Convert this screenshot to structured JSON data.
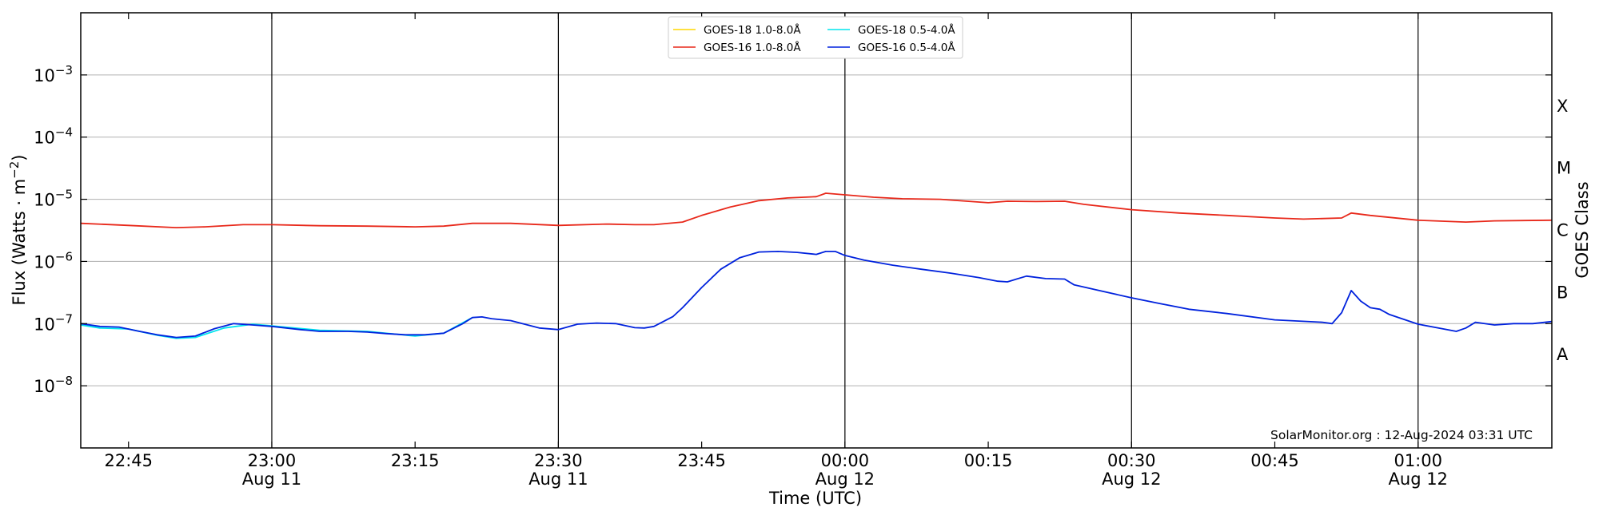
{
  "chart_data": {
    "type": "line",
    "title": "",
    "xlabel": "Time (UTC)",
    "ylabel": "Flux (Watts · m",
    "ylabel_superscript": "−2",
    "ylabel_close": ")",
    "right_label": "GOES Class",
    "y_scale": "log",
    "ylim": [
      1e-09,
      0.01
    ],
    "x_range_minutes": [
      "22:40",
      "01:14"
    ],
    "y_ticks": [
      {
        "value": 1e-08,
        "base": "10",
        "exp": "−8"
      },
      {
        "value": 1e-07,
        "base": "10",
        "exp": "−7"
      },
      {
        "value": 1e-06,
        "base": "10",
        "exp": "−6"
      },
      {
        "value": 1e-05,
        "base": "10",
        "exp": "−5"
      },
      {
        "value": 0.0001,
        "base": "10",
        "exp": "−4"
      },
      {
        "value": 0.001,
        "base": "10",
        "exp": "−3"
      }
    ],
    "x_ticks": [
      {
        "time": "22:45",
        "label": "22:45",
        "date": ""
      },
      {
        "time": "23:00",
        "label": "23:00",
        "date": "Aug 11"
      },
      {
        "time": "23:15",
        "label": "23:15",
        "date": ""
      },
      {
        "time": "23:30",
        "label": "23:30",
        "date": "Aug 11"
      },
      {
        "time": "23:45",
        "label": "23:45",
        "date": ""
      },
      {
        "time": "00:00",
        "label": "00:00",
        "date": "Aug 12"
      },
      {
        "time": "00:15",
        "label": "00:15",
        "date": ""
      },
      {
        "time": "00:30",
        "label": "00:30",
        "date": "Aug 12"
      },
      {
        "time": "00:45",
        "label": "00:45",
        "date": ""
      },
      {
        "time": "01:00",
        "label": "01:00",
        "date": "Aug 12"
      }
    ],
    "vertical_lines": [
      "23:00",
      "23:30",
      "00:00",
      "00:30",
      "01:00"
    ],
    "class_labels": [
      {
        "label": "X",
        "value": 0.000316
      },
      {
        "label": "M",
        "value": 3.16e-05
      },
      {
        "label": "C",
        "value": 3.16e-06
      },
      {
        "label": "B",
        "value": 3.16e-07
      },
      {
        "label": "A",
        "value": 3.16e-08
      }
    ],
    "grid": true,
    "legend_position": "top-center",
    "watermark": "SolarMonitor.org : 12-Aug-2024 03:31 UTC",
    "series": [
      {
        "name": "GOES-18 1.0-8.0Å",
        "color": "#ffd700",
        "x": [],
        "values": []
      },
      {
        "name": "GOES-16 1.0-8.0Å",
        "color": "#e8281a",
        "x": [
          "22:40",
          "22:45",
          "22:50",
          "22:53",
          "22:57",
          "23:00",
          "23:05",
          "23:10",
          "23:15",
          "23:18",
          "23:21",
          "23:25",
          "23:30",
          "23:35",
          "23:38",
          "23:40",
          "23:43",
          "23:45",
          "23:48",
          "23:51",
          "23:54",
          "23:57",
          "23:58",
          "24:00",
          "24:03",
          "24:06",
          "24:10",
          "24:15",
          "24:17",
          "24:20",
          "24:23",
          "24:25",
          "24:30",
          "24:35",
          "24:40",
          "24:45",
          "24:48",
          "24:52",
          "24:53",
          "24:55",
          "25:00",
          "25:05",
          "25:08",
          "25:14"
        ],
        "values": [
          4.1e-06,
          3.8e-06,
          3.5e-06,
          3.6e-06,
          3.9e-06,
          3.9e-06,
          3.75e-06,
          3.7e-06,
          3.6e-06,
          3.7e-06,
          4.1e-06,
          4.1e-06,
          3.8e-06,
          4e-06,
          3.9e-06,
          3.9e-06,
          4.3e-06,
          5.5e-06,
          7.5e-06,
          9.5e-06,
          1.05e-05,
          1.1e-05,
          1.25e-05,
          1.18e-05,
          1.08e-05,
          1.02e-05,
          1e-05,
          8.8e-06,
          9.3e-06,
          9.2e-06,
          9.3e-06,
          8.3e-06,
          6.8e-06,
          6e-06,
          5.5e-06,
          5e-06,
          4.8e-06,
          5e-06,
          6e-06,
          5.5e-06,
          4.6e-06,
          4.3e-06,
          4.5e-06,
          4.6e-06
        ]
      },
      {
        "name": "GOES-18 0.5-4.0Å",
        "color": "#00e5ee",
        "x": [
          "22:40",
          "22:42",
          "22:45",
          "22:48",
          "22:50",
          "22:52",
          "22:55",
          "22:58",
          "23:00",
          "23:05",
          "23:10",
          "23:15",
          "23:18",
          "23:21"
        ],
        "values": [
          9.5e-08,
          8.5e-08,
          8.2e-08,
          6.5e-08,
          5.8e-08,
          6e-08,
          8.5e-08,
          9.8e-08,
          9.2e-08,
          7.8e-08,
          7.5e-08,
          6.3e-08,
          7e-08,
          1.25e-07
        ]
      },
      {
        "name": "GOES-16 0.5-4.0Å",
        "color": "#0022dd",
        "x": [
          "22:40",
          "22:42",
          "22:44",
          "22:46",
          "22:48",
          "22:50",
          "22:52",
          "22:54",
          "22:56",
          "22:58",
          "23:00",
          "23:03",
          "23:05",
          "23:08",
          "23:10",
          "23:12",
          "23:14",
          "23:16",
          "23:18",
          "23:20",
          "23:21",
          "23:22",
          "23:23",
          "23:25",
          "23:28",
          "23:30",
          "23:32",
          "23:34",
          "23:36",
          "23:38",
          "23:39",
          "23:40",
          "23:42",
          "23:43",
          "23:45",
          "23:47",
          "23:49",
          "23:51",
          "23:53",
          "23:55",
          "23:57",
          "23:58",
          "23:59",
          "24:00",
          "24:02",
          "24:05",
          "24:08",
          "24:11",
          "24:14",
          "24:16",
          "24:17",
          "24:19",
          "24:21",
          "24:23",
          "24:24",
          "24:27",
          "24:30",
          "24:33",
          "24:36",
          "24:40",
          "24:45",
          "24:50",
          "24:51",
          "24:52",
          "24:53",
          "24:54",
          "24:55",
          "24:56",
          "24:57",
          "25:00",
          "25:03",
          "25:04",
          "25:05",
          "25:06",
          "25:08",
          "25:10",
          "25:12",
          "25:14"
        ],
        "values": [
          1e-07,
          9e-08,
          8.8e-08,
          7.6e-08,
          6.6e-08,
          6e-08,
          6.3e-08,
          8.3e-08,
          1e-07,
          9.5e-08,
          9e-08,
          8e-08,
          7.5e-08,
          7.5e-08,
          7.3e-08,
          6.9e-08,
          6.6e-08,
          6.6e-08,
          7e-08,
          1e-07,
          1.25e-07,
          1.28e-07,
          1.2e-07,
          1.12e-07,
          8.5e-08,
          8e-08,
          9.8e-08,
          1.02e-07,
          1e-07,
          8.6e-08,
          8.5e-08,
          9e-08,
          1.3e-07,
          1.8e-07,
          3.8e-07,
          7.5e-07,
          1.15e-06,
          1.42e-06,
          1.45e-06,
          1.4e-06,
          1.3e-06,
          1.45e-06,
          1.45e-06,
          1.25e-06,
          1.05e-06,
          8.7e-07,
          7.5e-07,
          6.5e-07,
          5.5e-07,
          4.8e-07,
          4.7e-07,
          5.8e-07,
          5.3e-07,
          5.2e-07,
          4.2e-07,
          3.3e-07,
          2.6e-07,
          2.1e-07,
          1.7e-07,
          1.45e-07,
          1.15e-07,
          1.05e-07,
          1e-07,
          1.5e-07,
          3.4e-07,
          2.3e-07,
          1.8e-07,
          1.7e-07,
          1.4e-07,
          9.8e-08,
          8e-08,
          7.5e-08,
          8.5e-08,
          1.05e-07,
          9.5e-08,
          1e-07,
          1e-07,
          1.08e-07
        ]
      }
    ]
  }
}
